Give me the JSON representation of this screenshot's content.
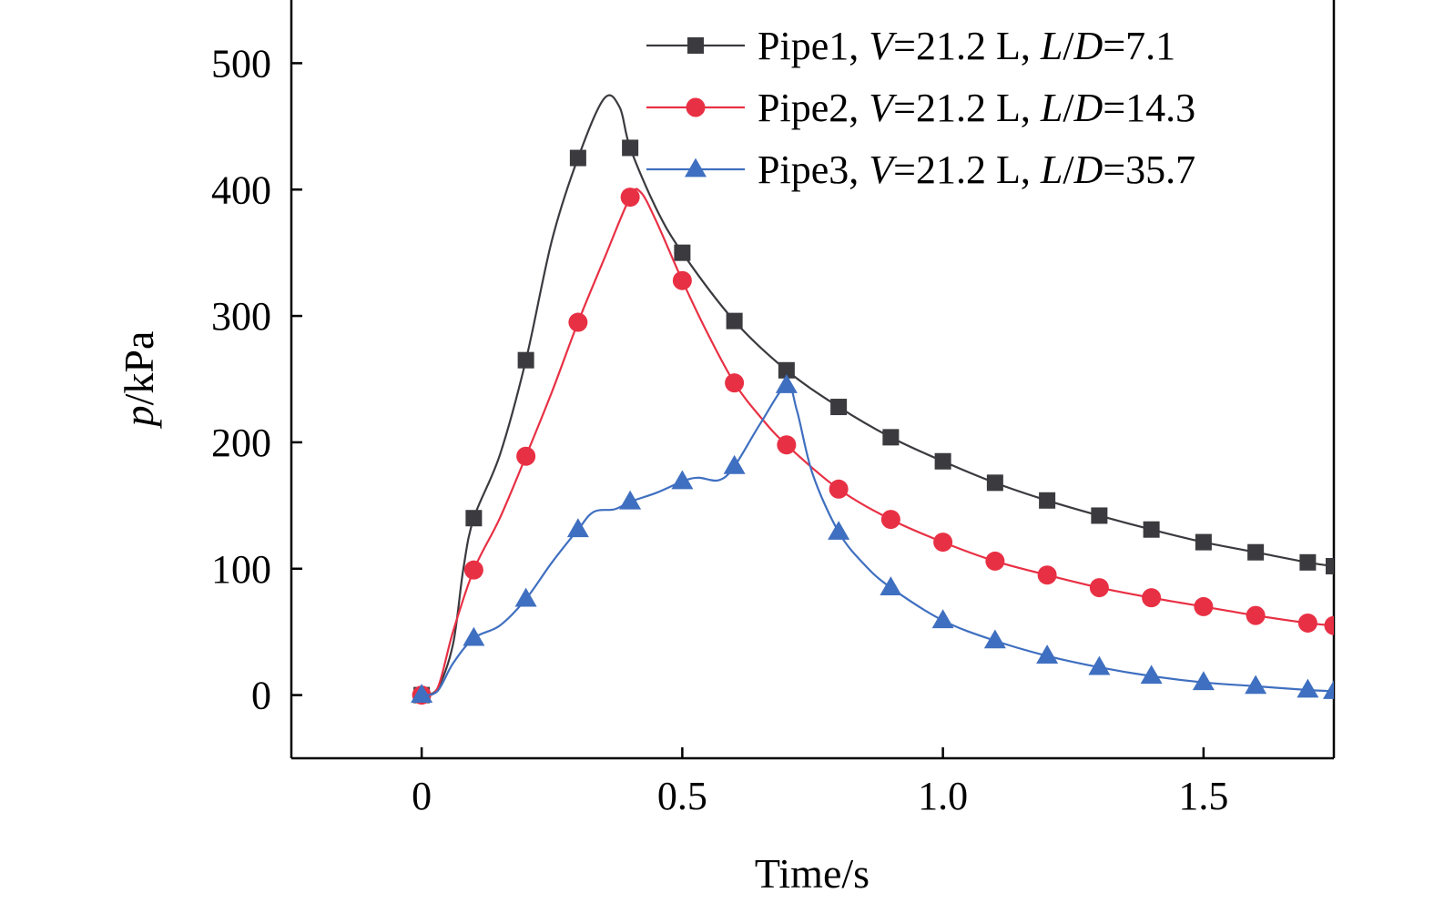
{
  "chart_data": {
    "type": "line",
    "title": "",
    "xlabel": "Time/s",
    "ylabel_italic": "p",
    "ylabel_rest": "/kPa",
    "xlim": [
      -0.25,
      1.75
    ],
    "ylim": [
      -50,
      550
    ],
    "xticks": [
      {
        "value": 0,
        "label": "0"
      },
      {
        "value": 0.5,
        "label": "0.5"
      },
      {
        "value": 1.0,
        "label": "1.0"
      },
      {
        "value": 1.5,
        "label": "1.5"
      }
    ],
    "yticks": [
      {
        "value": 0,
        "label": "0"
      },
      {
        "value": 100,
        "label": "100"
      },
      {
        "value": 200,
        "label": "200"
      },
      {
        "value": 300,
        "label": "300"
      },
      {
        "value": 400,
        "label": "400"
      },
      {
        "value": 500,
        "label": "500"
      }
    ],
    "grid": false,
    "legend_position": "top-right",
    "series": [
      {
        "name": "Pipe1",
        "legend_parts": [
          {
            "text": "Pipe1, ",
            "italic": false
          },
          {
            "text": "V",
            "italic": true
          },
          {
            "text": "=21.2 L, ",
            "italic": false
          },
          {
            "text": "L",
            "italic": true
          },
          {
            "text": "/",
            "italic": false
          },
          {
            "text": "D",
            "italic": true
          },
          {
            "text": "=7.1",
            "italic": false
          }
        ],
        "color": "#3a3a3f",
        "marker": "square",
        "x": [
          0,
          0.1,
          0.2,
          0.3,
          0.4,
          0.5,
          0.6,
          0.7,
          0.8,
          0.9,
          1.0,
          1.1,
          1.2,
          1.3,
          1.4,
          1.5,
          1.6,
          1.7,
          1.75
        ],
        "y": [
          0,
          140,
          265,
          425,
          433,
          350,
          296,
          257,
          228,
          204,
          185,
          168,
          154,
          142,
          131,
          121,
          113,
          105,
          102
        ],
        "curve": [
          [
            0,
            0
          ],
          [
            0.03,
            5
          ],
          [
            0.06,
            40
          ],
          [
            0.08,
            100
          ],
          [
            0.1,
            140
          ],
          [
            0.15,
            190
          ],
          [
            0.2,
            265
          ],
          [
            0.25,
            360
          ],
          [
            0.3,
            425
          ],
          [
            0.35,
            472
          ],
          [
            0.38,
            465
          ],
          [
            0.4,
            433
          ],
          [
            0.45,
            385
          ],
          [
            0.5,
            350
          ],
          [
            0.6,
            296
          ],
          [
            0.7,
            257
          ],
          [
            0.8,
            228
          ],
          [
            0.9,
            204
          ],
          [
            1.0,
            185
          ],
          [
            1.1,
            168
          ],
          [
            1.2,
            154
          ],
          [
            1.3,
            142
          ],
          [
            1.4,
            131
          ],
          [
            1.5,
            121
          ],
          [
            1.6,
            113
          ],
          [
            1.7,
            105
          ],
          [
            1.75,
            102
          ]
        ]
      },
      {
        "name": "Pipe2",
        "legend_parts": [
          {
            "text": "Pipe2, ",
            "italic": false
          },
          {
            "text": "V",
            "italic": true
          },
          {
            "text": "=21.2 L, ",
            "italic": false
          },
          {
            "text": "L",
            "italic": true
          },
          {
            "text": "/",
            "italic": false
          },
          {
            "text": "D",
            "italic": true
          },
          {
            "text": "=14.3",
            "italic": false
          }
        ],
        "color": "#e83044",
        "marker": "circle",
        "x": [
          0,
          0.1,
          0.2,
          0.3,
          0.4,
          0.5,
          0.6,
          0.7,
          0.8,
          0.9,
          1.0,
          1.1,
          1.2,
          1.3,
          1.4,
          1.5,
          1.6,
          1.7,
          1.75
        ],
        "y": [
          0,
          99,
          189,
          295,
          394,
          328,
          247,
          198,
          163,
          139,
          121,
          106,
          95,
          85,
          77,
          70,
          63,
          57,
          55
        ],
        "curve": [
          [
            0,
            0
          ],
          [
            0.03,
            5
          ],
          [
            0.06,
            50
          ],
          [
            0.1,
            99
          ],
          [
            0.15,
            140
          ],
          [
            0.2,
            189
          ],
          [
            0.25,
            240
          ],
          [
            0.3,
            295
          ],
          [
            0.35,
            345
          ],
          [
            0.4,
            394
          ],
          [
            0.42,
            398
          ],
          [
            0.45,
            375
          ],
          [
            0.5,
            328
          ],
          [
            0.55,
            285
          ],
          [
            0.6,
            247
          ],
          [
            0.65,
            220
          ],
          [
            0.7,
            198
          ],
          [
            0.8,
            163
          ],
          [
            0.9,
            139
          ],
          [
            1.0,
            121
          ],
          [
            1.1,
            106
          ],
          [
            1.2,
            95
          ],
          [
            1.3,
            85
          ],
          [
            1.4,
            77
          ],
          [
            1.5,
            70
          ],
          [
            1.6,
            63
          ],
          [
            1.7,
            57
          ],
          [
            1.75,
            55
          ]
        ]
      },
      {
        "name": "Pipe3",
        "legend_parts": [
          {
            "text": "Pipe3, ",
            "italic": false
          },
          {
            "text": "V",
            "italic": true
          },
          {
            "text": "=21.2 L, ",
            "italic": false
          },
          {
            "text": "L",
            "italic": true
          },
          {
            "text": "/",
            "italic": false
          },
          {
            "text": "D",
            "italic": true
          },
          {
            "text": "=35.7",
            "italic": false
          }
        ],
        "color": "#3f6fc0",
        "marker": "triangle",
        "x": [
          0,
          0.1,
          0.2,
          0.3,
          0.4,
          0.5,
          0.6,
          0.7,
          0.8,
          0.9,
          1.0,
          1.1,
          1.2,
          1.3,
          1.4,
          1.5,
          1.6,
          1.7,
          1.75
        ],
        "y": [
          0,
          45,
          76,
          131,
          153,
          169,
          181,
          245,
          129,
          85,
          59,
          43,
          31,
          22,
          15,
          10,
          7,
          4,
          3
        ],
        "curve": [
          [
            0,
            0
          ],
          [
            0.03,
            3
          ],
          [
            0.06,
            25
          ],
          [
            0.1,
            45
          ],
          [
            0.15,
            55
          ],
          [
            0.2,
            76
          ],
          [
            0.25,
            105
          ],
          [
            0.3,
            131
          ],
          [
            0.33,
            145
          ],
          [
            0.37,
            147
          ],
          [
            0.4,
            153
          ],
          [
            0.45,
            160
          ],
          [
            0.5,
            169
          ],
          [
            0.53,
            172
          ],
          [
            0.57,
            170
          ],
          [
            0.6,
            181
          ],
          [
            0.65,
            215
          ],
          [
            0.7,
            245
          ],
          [
            0.72,
            225
          ],
          [
            0.75,
            175
          ],
          [
            0.8,
            129
          ],
          [
            0.85,
            103
          ],
          [
            0.9,
            85
          ],
          [
            1.0,
            59
          ],
          [
            1.1,
            43
          ],
          [
            1.2,
            31
          ],
          [
            1.3,
            22
          ],
          [
            1.4,
            15
          ],
          [
            1.5,
            10
          ],
          [
            1.6,
            7
          ],
          [
            1.7,
            4
          ],
          [
            1.75,
            3
          ]
        ]
      }
    ]
  }
}
